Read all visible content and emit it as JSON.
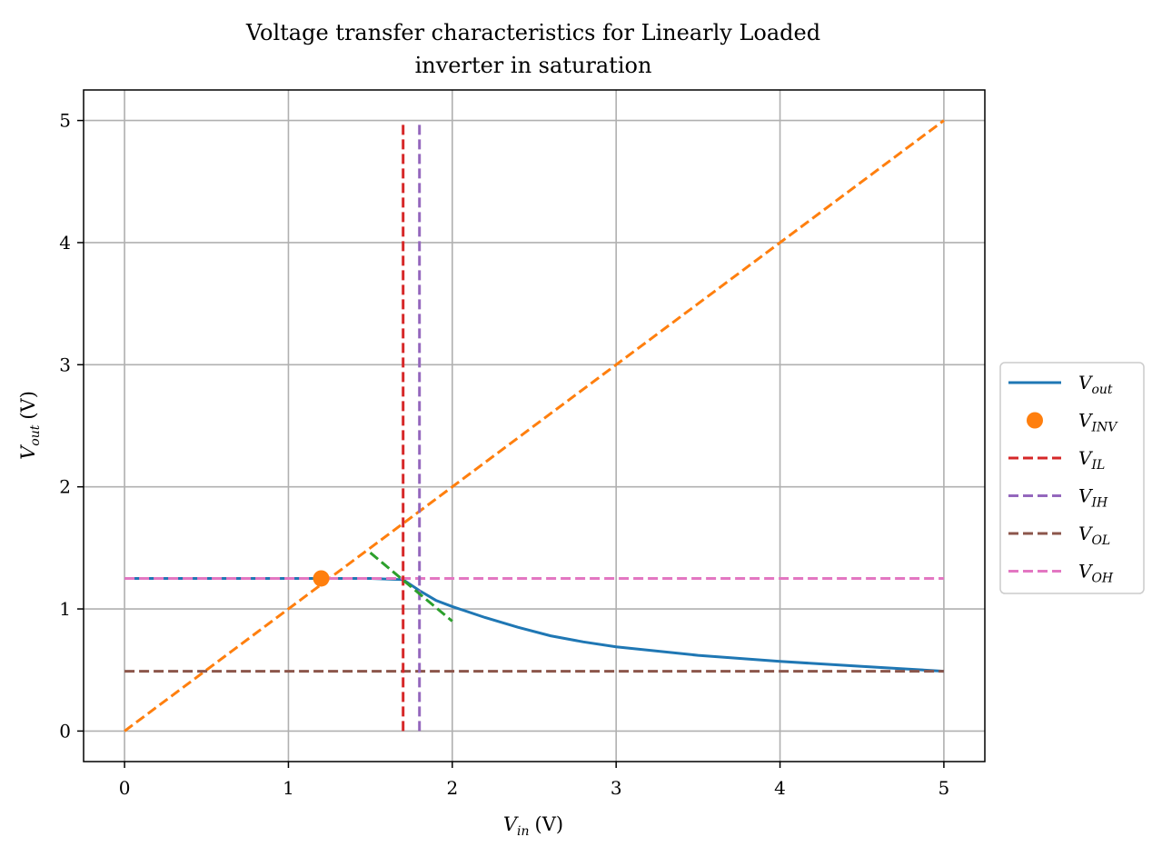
{
  "chart_data": {
    "type": "line",
    "title_line1": "Voltage transfer characteristics for Linearly Loaded",
    "title_line2": "inverter in saturation",
    "xlabel": {
      "main": "V",
      "sub": "in",
      "unit": "(V)"
    },
    "ylabel": {
      "main": "V",
      "sub": "out",
      "unit": "(V)"
    },
    "xlim": [
      -0.25,
      5.25
    ],
    "ylim": [
      -0.25,
      5.25
    ],
    "x_ticks": [
      0,
      1,
      2,
      3,
      4,
      5
    ],
    "y_ticks": [
      0,
      1,
      2,
      3,
      4,
      5
    ],
    "x_tick_labels": [
      "0",
      "1",
      "2",
      "3",
      "4",
      "5"
    ],
    "y_tick_labels": [
      "0",
      "1",
      "2",
      "3",
      "4",
      "5"
    ],
    "grid": true,
    "legend_placement": "outside-right",
    "series": [
      {
        "name": "V_out",
        "label_main": "V",
        "label_sub": "out",
        "kind": "line",
        "style": "solid",
        "color": "#1f77b4",
        "x": [
          0,
          0.5,
          1.0,
          1.5,
          1.7,
          1.8,
          1.9,
          2.0,
          2.2,
          2.4,
          2.6,
          2.8,
          3.0,
          3.5,
          4.0,
          4.5,
          5.0
        ],
        "y": [
          1.25,
          1.25,
          1.25,
          1.25,
          1.24,
          1.15,
          1.07,
          1.02,
          0.93,
          0.85,
          0.78,
          0.73,
          0.69,
          0.62,
          0.57,
          0.53,
          0.49
        ]
      },
      {
        "name": "V_INV",
        "label_main": "V",
        "label_sub": "INV",
        "kind": "point",
        "color": "#ff7f0e",
        "x": [
          1.2
        ],
        "y": [
          1.25
        ]
      },
      {
        "name": "V_IL",
        "label_main": "V",
        "label_sub": "IL",
        "kind": "line",
        "style": "dashed",
        "color": "#d62728",
        "x": [
          1.7,
          1.7
        ],
        "y": [
          0,
          5
        ]
      },
      {
        "name": "V_IH",
        "label_main": "V",
        "label_sub": "IH",
        "kind": "line",
        "style": "dashed",
        "color": "#9467bd",
        "x": [
          1.8,
          1.8
        ],
        "y": [
          0,
          5
        ]
      },
      {
        "name": "V_OL",
        "label_main": "V",
        "label_sub": "OL",
        "kind": "line",
        "style": "dashed",
        "color": "#8c564b",
        "x": [
          0,
          5
        ],
        "y": [
          0.49,
          0.49
        ]
      },
      {
        "name": "V_OH",
        "label_main": "V",
        "label_sub": "OH",
        "kind": "line",
        "style": "dashed",
        "color": "#e377c2",
        "x": [
          0,
          5
        ],
        "y": [
          1.25,
          1.25
        ]
      }
    ],
    "extra_lines": [
      {
        "kind": "line",
        "style": "dashed",
        "color": "#ff7f0e",
        "x": [
          0,
          5
        ],
        "y": [
          0,
          5
        ]
      },
      {
        "kind": "line",
        "style": "dashed",
        "color": "#2ca02c",
        "x": [
          1.5,
          2.0
        ],
        "y": [
          1.46,
          0.9
        ]
      }
    ]
  }
}
